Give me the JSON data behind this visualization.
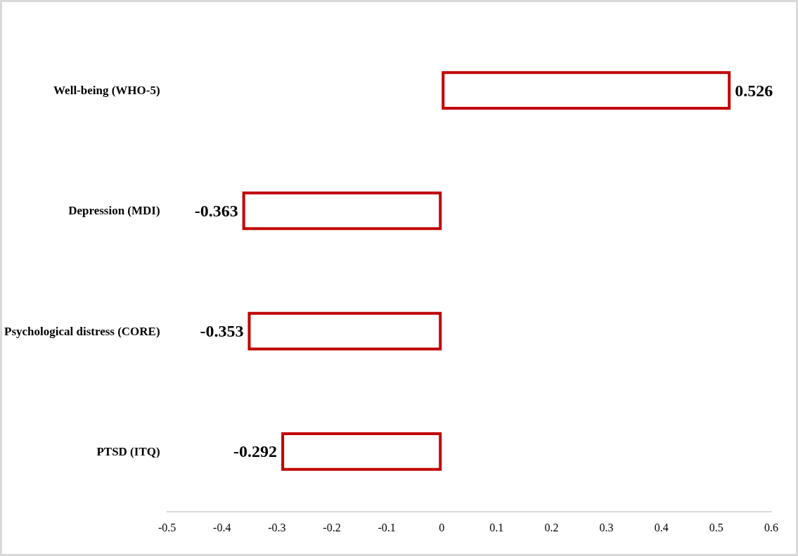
{
  "chart_data": {
    "type": "bar",
    "orientation": "horizontal",
    "categories": [
      "Well-being (WHO-5)",
      "Depression (MDI)",
      "Psychological distress (CORE)",
      "PTSD (ITQ)"
    ],
    "values": [
      0.526,
      -0.363,
      -0.353,
      -0.292
    ],
    "color": "#c00000",
    "xlim": [
      -0.5,
      0.6
    ],
    "xticks": [
      -0.5,
      -0.4,
      -0.3,
      -0.2,
      -0.1,
      0,
      0.1,
      0.2,
      0.3,
      0.4,
      0.5,
      0.6
    ],
    "data_labels": true
  }
}
